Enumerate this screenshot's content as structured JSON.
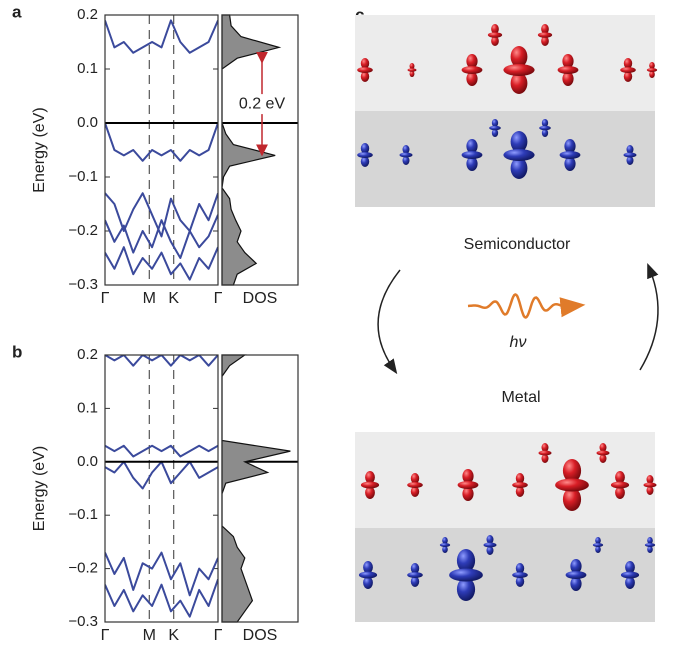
{
  "chart_data": [
    {
      "type": "line",
      "panel": "a",
      "ylabel": "Energy (eV)",
      "ylim": [
        -0.3,
        0.2
      ],
      "yticks": [
        0.2,
        0.1,
        {
          "value": 0,
          "label": "0.0"
        },
        {
          "value": -0.1,
          "label": "−0.1"
        },
        {
          "value": -0.2,
          "label": "−0.2"
        },
        {
          "value": -0.3,
          "label": "−0.3"
        }
      ],
      "xlim": [
        0,
        12
      ],
      "xticks": [
        {
          "value": 0,
          "label": "Γ"
        },
        {
          "value": 4.7,
          "label": "M"
        },
        {
          "value": 7.3,
          "label": "K"
        },
        {
          "value": 12,
          "label": "Γ"
        }
      ],
      "xgrid_dashed": true,
      "x": [
        0,
        1,
        2,
        3,
        4,
        5,
        6,
        7,
        8,
        9,
        10,
        11,
        12
      ],
      "series": [
        {
          "color": "#3b4a9c",
          "values": [
            0.19,
            0.14,
            0.15,
            0.13,
            0.14,
            0.15,
            0.14,
            0.19,
            0.15,
            0.13,
            0.14,
            0.15,
            0.19
          ]
        },
        {
          "color": "#3b4a9c",
          "values": [
            0,
            -0.05,
            -0.06,
            -0.05,
            -0.07,
            -0.05,
            -0.06,
            -0.05,
            -0.07,
            -0.05,
            -0.06,
            -0.05,
            0
          ]
        },
        {
          "color": "#3b4a9c",
          "values": [
            -0.13,
            -0.15,
            -0.2,
            -0.16,
            -0.13,
            -0.17,
            -0.21,
            -0.14,
            -0.18,
            -0.2,
            -0.15,
            -0.18,
            -0.13
          ]
        },
        {
          "color": "#3b4a9c",
          "values": [
            -0.18,
            -0.22,
            -0.19,
            -0.24,
            -0.2,
            -0.23,
            -0.18,
            -0.22,
            -0.25,
            -0.2,
            -0.23,
            -0.21,
            -0.17
          ]
        },
        {
          "color": "#3b4a9c",
          "values": [
            -0.24,
            -0.27,
            -0.23,
            -0.28,
            -0.25,
            -0.27,
            -0.24,
            -0.28,
            -0.26,
            -0.29,
            -0.25,
            -0.27,
            -0.23
          ]
        }
      ],
      "hline": 0,
      "dos": {
        "label": "DOS",
        "color": "#8c8c8c",
        "xlim": [
          0,
          1
        ],
        "energy": [
          0.2,
          0.18,
          0.16,
          0.14,
          0.12,
          0.1,
          0.08,
          0.06,
          0.04,
          0.02,
          0,
          -0.02,
          -0.04,
          -0.06,
          -0.08,
          -0.1,
          -0.12,
          -0.14,
          -0.16,
          -0.18,
          -0.2,
          -0.22,
          -0.24,
          -0.26,
          -0.28,
          -0.3
        ],
        "values": [
          0.1,
          0.12,
          0.25,
          0.75,
          0.2,
          0,
          0,
          0,
          0,
          0,
          0,
          0.05,
          0.15,
          0.7,
          0.1,
          0.02,
          0,
          0.1,
          0.12,
          0.18,
          0.25,
          0.2,
          0.3,
          0.45,
          0.2,
          0.15
        ]
      },
      "annotation": {
        "text": "0.2 eV",
        "color": "#c0272d",
        "from": 0.13,
        "to": -0.06
      }
    },
    {
      "type": "line",
      "panel": "b",
      "ylabel": "Energy (eV)",
      "ylim": [
        -0.3,
        0.2
      ],
      "yticks": [
        0.2,
        0.1,
        {
          "value": 0,
          "label": "0.0"
        },
        {
          "value": -0.1,
          "label": "−0.1"
        },
        {
          "value": -0.2,
          "label": "−0.2"
        },
        {
          "value": -0.3,
          "label": "−0.3"
        }
      ],
      "xlim": [
        0,
        12
      ],
      "xticks": [
        {
          "value": 0,
          "label": "Γ"
        },
        {
          "value": 4.7,
          "label": "M"
        },
        {
          "value": 7.3,
          "label": "K"
        },
        {
          "value": 12,
          "label": "Γ"
        }
      ],
      "xgrid_dashed": true,
      "x": [
        0,
        1,
        2,
        3,
        4,
        5,
        6,
        7,
        8,
        9,
        10,
        11,
        12
      ],
      "series": [
        {
          "color": "#3b4a9c",
          "values": [
            0.2,
            0.19,
            0.2,
            0.18,
            0.2,
            0.19,
            0.2,
            0.18,
            0.2,
            0.19,
            0.2,
            0.18,
            0.2
          ]
        },
        {
          "color": "#3b4a9c",
          "values": [
            0.03,
            0.02,
            0.03,
            0.01,
            0.02,
            0.03,
            0.02,
            0.03,
            0.01,
            0.02,
            0.03,
            0.02,
            0.03
          ]
        },
        {
          "color": "#3b4a9c",
          "values": [
            -0.01,
            -0.02,
            0,
            -0.03,
            -0.05,
            -0.02,
            0,
            -0.04,
            -0.02,
            0,
            -0.03,
            -0.02,
            -0.01
          ]
        },
        {
          "color": "#3b4a9c",
          "values": [
            -0.17,
            -0.21,
            -0.18,
            -0.24,
            -0.19,
            -0.2,
            -0.17,
            -0.22,
            -0.19,
            -0.25,
            -0.2,
            -0.22,
            -0.18
          ]
        },
        {
          "color": "#3b4a9c",
          "values": [
            -0.23,
            -0.27,
            -0.24,
            -0.28,
            -0.25,
            -0.27,
            -0.23,
            -0.28,
            -0.26,
            -0.29,
            -0.24,
            -0.27,
            -0.22
          ]
        }
      ],
      "hline": 0,
      "dos": {
        "label": "DOS",
        "color": "#8c8c8c",
        "xlim": [
          0,
          1
        ],
        "energy": [
          0.2,
          0.18,
          0.16,
          0.14,
          0.12,
          0.1,
          0.08,
          0.06,
          0.04,
          0.02,
          0,
          -0.02,
          -0.04,
          -0.06,
          -0.08,
          -0.1,
          -0.12,
          -0.14,
          -0.16,
          -0.18,
          -0.2,
          -0.22,
          -0.24,
          -0.26,
          -0.28,
          -0.3
        ],
        "values": [
          0.3,
          0.1,
          0,
          0,
          0,
          0,
          0,
          0,
          0,
          0.9,
          0.3,
          0.6,
          0.05,
          0,
          0,
          0,
          0,
          0.15,
          0.2,
          0.3,
          0.25,
          0.3,
          0.35,
          0.4,
          0.3,
          0.2
        ]
      }
    }
  ],
  "panel_c": {
    "panel": "c",
    "top_label": "Semiconductor",
    "bottom_label": "Metal",
    "photon": "hν"
  }
}
